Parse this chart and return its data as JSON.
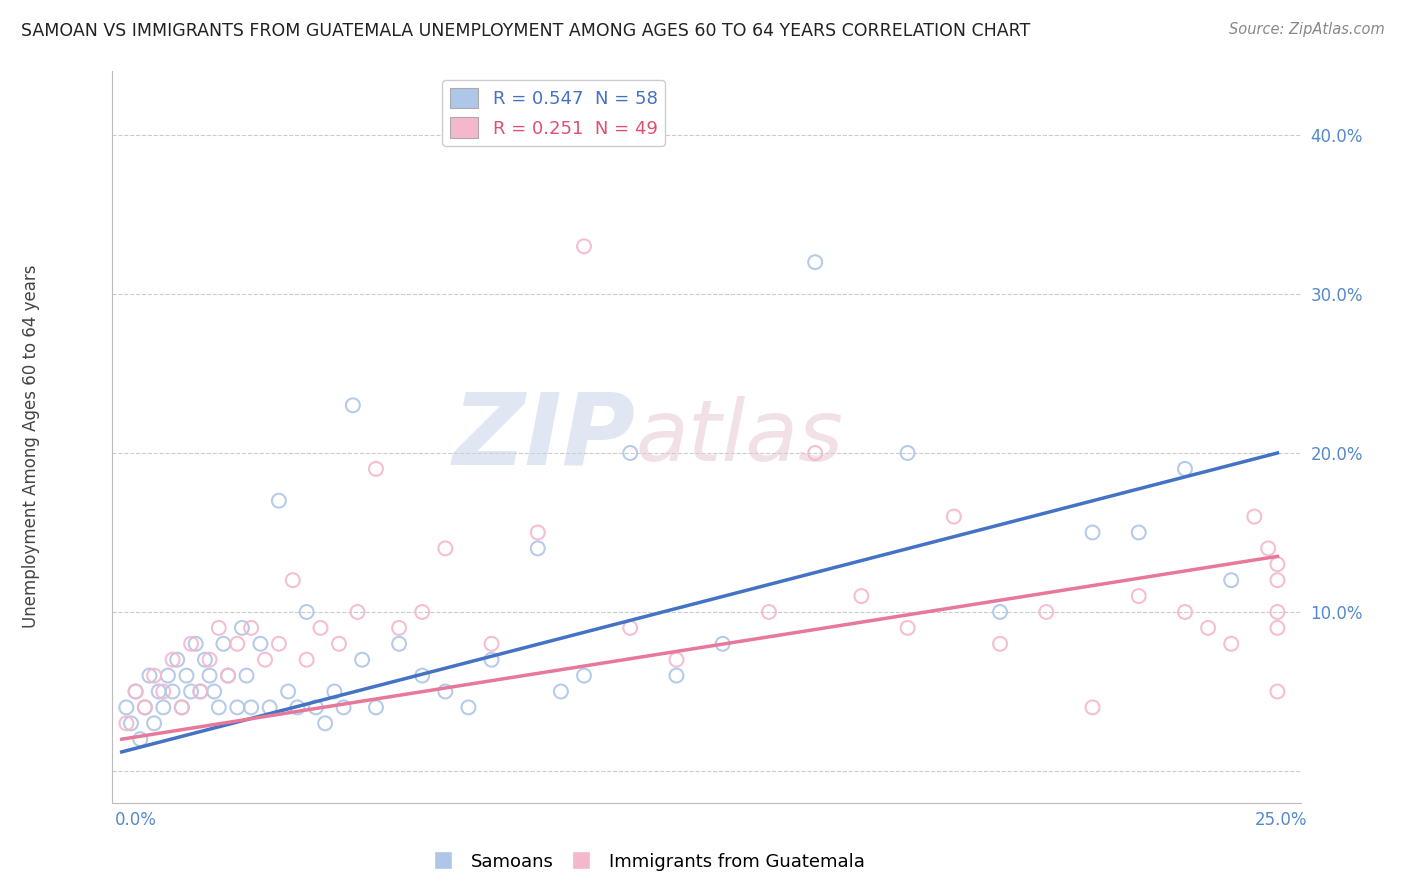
{
  "title": "SAMOAN VS IMMIGRANTS FROM GUATEMALA UNEMPLOYMENT AMONG AGES 60 TO 64 YEARS CORRELATION CHART",
  "source": "Source: ZipAtlas.com",
  "ylabel": "Unemployment Among Ages 60 to 64 years",
  "ytick_labels": [
    "40.0%",
    "30.0%",
    "20.0%",
    "10.0%",
    ""
  ],
  "ytick_vals": [
    0.4,
    0.3,
    0.2,
    0.1,
    0.0
  ],
  "xlim": [
    -0.002,
    0.255
  ],
  "ylim": [
    -0.02,
    0.44
  ],
  "legend1_r": "0.547",
  "legend1_n": "58",
  "legend2_r": "0.251",
  "legend2_n": "49",
  "blue_scatter_color": "#aec6e8",
  "pink_scatter_color": "#f4b8cc",
  "blue_line_color": "#4472c4",
  "pink_line_color": "#e8789a",
  "legend_blue_text": "#4472c4",
  "legend_pink_text": "#e05070",
  "watermark_color": "#c8d8ee",
  "samoans_x": [
    0.001,
    0.002,
    0.003,
    0.004,
    0.005,
    0.006,
    0.007,
    0.008,
    0.009,
    0.01,
    0.011,
    0.012,
    0.013,
    0.014,
    0.015,
    0.016,
    0.017,
    0.018,
    0.019,
    0.02,
    0.021,
    0.022,
    0.023,
    0.025,
    0.026,
    0.027,
    0.028,
    0.03,
    0.032,
    0.034,
    0.036,
    0.038,
    0.04,
    0.042,
    0.044,
    0.046,
    0.048,
    0.05,
    0.052,
    0.055,
    0.06,
    0.065,
    0.07,
    0.075,
    0.08,
    0.09,
    0.095,
    0.1,
    0.11,
    0.12,
    0.13,
    0.15,
    0.17,
    0.19,
    0.21,
    0.22,
    0.23,
    0.24
  ],
  "samoans_y": [
    0.04,
    0.03,
    0.05,
    0.02,
    0.04,
    0.06,
    0.03,
    0.05,
    0.04,
    0.06,
    0.05,
    0.07,
    0.04,
    0.06,
    0.05,
    0.08,
    0.05,
    0.07,
    0.06,
    0.05,
    0.04,
    0.08,
    0.06,
    0.04,
    0.09,
    0.06,
    0.04,
    0.08,
    0.04,
    0.17,
    0.05,
    0.04,
    0.1,
    0.04,
    0.03,
    0.05,
    0.04,
    0.23,
    0.07,
    0.04,
    0.08,
    0.06,
    0.05,
    0.04,
    0.07,
    0.14,
    0.05,
    0.06,
    0.2,
    0.06,
    0.08,
    0.32,
    0.2,
    0.1,
    0.15,
    0.15,
    0.19,
    0.12
  ],
  "guatemala_x": [
    0.001,
    0.003,
    0.005,
    0.007,
    0.009,
    0.011,
    0.013,
    0.015,
    0.017,
    0.019,
    0.021,
    0.023,
    0.025,
    0.028,
    0.031,
    0.034,
    0.037,
    0.04,
    0.043,
    0.047,
    0.051,
    0.055,
    0.06,
    0.065,
    0.07,
    0.08,
    0.09,
    0.1,
    0.11,
    0.12,
    0.14,
    0.15,
    0.16,
    0.17,
    0.18,
    0.19,
    0.2,
    0.21,
    0.22,
    0.23,
    0.235,
    0.24,
    0.245,
    0.248,
    0.25,
    0.25,
    0.25,
    0.25,
    0.25
  ],
  "guatemala_y": [
    0.03,
    0.05,
    0.04,
    0.06,
    0.05,
    0.07,
    0.04,
    0.08,
    0.05,
    0.07,
    0.09,
    0.06,
    0.08,
    0.09,
    0.07,
    0.08,
    0.12,
    0.07,
    0.09,
    0.08,
    0.1,
    0.19,
    0.09,
    0.1,
    0.14,
    0.08,
    0.15,
    0.33,
    0.09,
    0.07,
    0.1,
    0.2,
    0.11,
    0.09,
    0.16,
    0.08,
    0.1,
    0.04,
    0.11,
    0.1,
    0.09,
    0.08,
    0.16,
    0.14,
    0.12,
    0.1,
    0.09,
    0.13,
    0.05
  ],
  "blue_trend_x": [
    0.0,
    0.25
  ],
  "blue_trend_y": [
    0.012,
    0.2
  ],
  "pink_trend_x": [
    0.0,
    0.25
  ],
  "pink_trend_y": [
    0.02,
    0.135
  ]
}
